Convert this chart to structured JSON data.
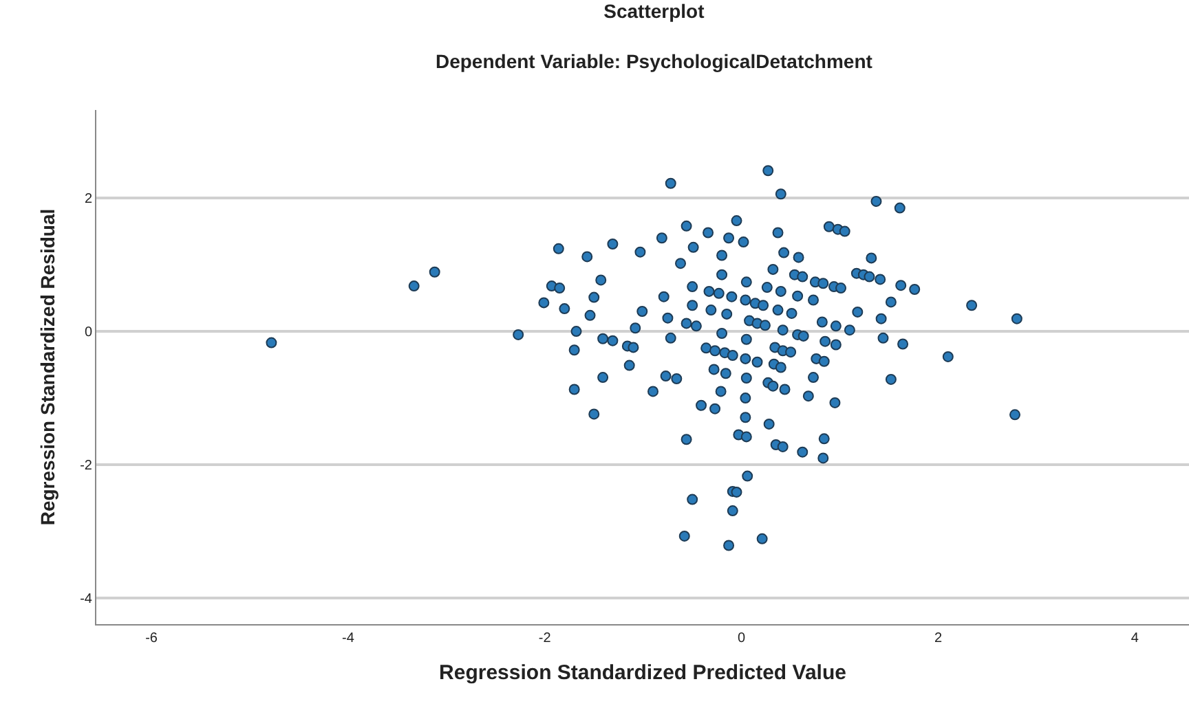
{
  "chart_data": {
    "type": "scatter",
    "title": "Scatterplot",
    "subtitle": "Dependent Variable: PsychologicalDetatchment",
    "xlabel": "Regression Standardized Predicted Value",
    "ylabel": "Regression Standardized Residual",
    "xlim": [
      -6.56,
      4.55
    ],
    "ylim": [
      -4.39,
      3.32
    ],
    "xticks": [
      -6,
      -4,
      -2,
      0,
      2,
      4
    ],
    "yticks": [
      -4,
      -2,
      0,
      2
    ],
    "grid": "y",
    "marker": "circle",
    "series": [
      {
        "color": "#2a7ab8",
        "x": [
          -4.78,
          -3.33,
          -3.12,
          -0.72,
          -0.56,
          -0.05,
          -0.34,
          -0.13,
          -0.81,
          -1.86,
          -1.57,
          -1.31,
          -1.03,
          -0.49,
          -0.2,
          -0.62,
          -0.2,
          -1.43,
          -1.93,
          -1.85,
          -0.5,
          -0.33,
          -0.23,
          -0.1,
          -2.01,
          -1.5,
          -0.79,
          -1.8,
          -0.5,
          -0.31,
          -0.15,
          -1.01,
          -1.54,
          -0.75,
          -0.56,
          -0.46,
          -1.08,
          -2.27,
          -1.68,
          -0.2,
          -1.7,
          -1.41,
          -1.31,
          -1.16,
          -1.1,
          -0.72,
          -0.36,
          -0.27,
          -0.17,
          -0.09,
          -1.14,
          -0.28,
          -0.16,
          -1.41,
          -0.77,
          -0.66,
          0.27,
          0.4,
          1.37,
          1.61,
          0.02,
          0.37,
          0.89,
          0.98,
          1.05,
          0.43,
          0.58,
          1.32,
          0.32,
          0.54,
          0.62,
          1.17,
          1.24,
          1.3,
          1.41,
          0.75,
          0.83,
          0.94,
          1.01,
          1.62,
          1.76,
          0.05,
          0.26,
          0.4,
          2.34,
          0.04,
          0.14,
          0.22,
          0.57,
          0.73,
          1.52,
          0.37,
          0.51,
          1.18,
          1.42,
          0.08,
          0.16,
          0.24,
          0.42,
          0.57,
          0.63,
          0.82,
          0.96,
          1.1,
          0.05,
          0.85,
          0.96,
          1.44,
          1.64,
          2.1,
          0.04,
          0.16,
          0.34,
          0.42,
          0.5,
          0.33,
          0.4,
          0.76,
          0.84,
          0.05,
          0.27,
          0.73,
          1.52,
          0.32,
          0.44,
          0.04,
          0.68,
          0.95,
          0.04,
          0.28,
          -0.03,
          0.05,
          0.84,
          0.35,
          0.42,
          0.62,
          0.83,
          0.06,
          -0.09,
          -0.05,
          -0.09,
          0.21,
          -0.13,
          -1.7,
          -0.9,
          -0.21,
          -0.41,
          -0.27,
          -1.5,
          -0.56,
          -0.5,
          -0.58,
          2.78,
          2.8
        ],
        "values": [
          -0.17,
          0.68,
          0.89,
          2.22,
          1.58,
          1.66,
          1.48,
          1.4,
          1.4,
          1.24,
          1.12,
          1.31,
          1.19,
          1.26,
          1.14,
          1.02,
          0.85,
          0.77,
          0.68,
          0.65,
          0.67,
          0.6,
          0.57,
          0.52,
          0.43,
          0.51,
          0.52,
          0.34,
          0.39,
          0.32,
          0.26,
          0.3,
          0.24,
          0.2,
          0.12,
          0.08,
          0.05,
          -0.05,
          0,
          -0.03,
          -0.28,
          -0.11,
          -0.14,
          -0.22,
          -0.24,
          -0.1,
          -0.25,
          -0.29,
          -0.32,
          -0.36,
          -0.51,
          -0.57,
          -0.63,
          -0.69,
          -0.67,
          -0.71,
          2.41,
          2.06,
          1.95,
          1.85,
          1.34,
          1.48,
          1.57,
          1.53,
          1.5,
          1.18,
          1.11,
          1.1,
          0.93,
          0.85,
          0.82,
          0.87,
          0.85,
          0.82,
          0.78,
          0.74,
          0.72,
          0.67,
          0.65,
          0.69,
          0.63,
          0.74,
          0.66,
          0.6,
          0.39,
          0.47,
          0.42,
          0.39,
          0.53,
          0.47,
          0.44,
          0.32,
          0.27,
          0.29,
          0.19,
          0.16,
          0.12,
          0.09,
          0.02,
          -0.05,
          -0.07,
          0.14,
          0.08,
          0.02,
          -0.12,
          -0.15,
          -0.2,
          -0.1,
          -0.19,
          -0.38,
          -0.41,
          -0.46,
          -0.24,
          -0.29,
          -0.31,
          -0.49,
          -0.54,
          -0.41,
          -0.45,
          -0.7,
          -0.77,
          -0.69,
          -0.72,
          -0.82,
          -0.87,
          -1.0,
          -0.97,
          -1.07,
          -1.29,
          -1.39,
          -1.55,
          -1.58,
          -1.61,
          -1.7,
          -1.73,
          -1.81,
          -1.9,
          -2.17,
          -2.4,
          -2.41,
          -2.69,
          -3.11,
          -3.21,
          -0.87,
          -0.9,
          -0.9,
          -1.11,
          -1.16,
          -1.24,
          -1.62,
          -2.52,
          -3.07,
          -1.25,
          0.19
        ]
      }
    ]
  }
}
